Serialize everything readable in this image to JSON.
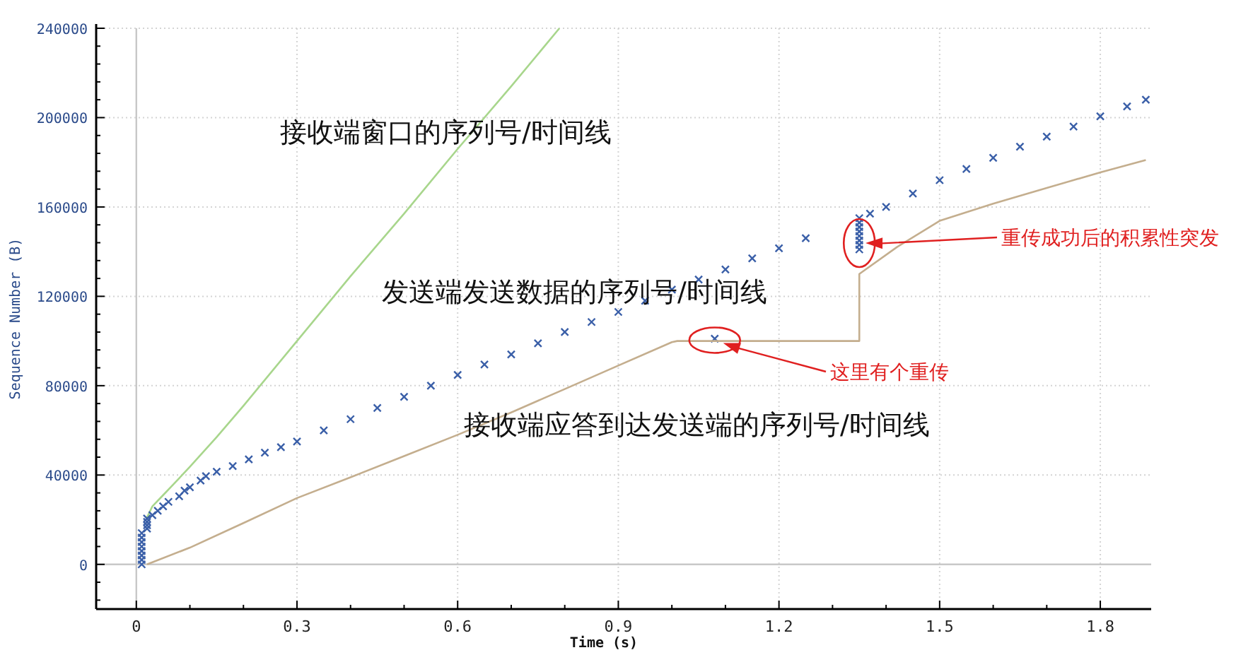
{
  "chart_data": {
    "type": "line",
    "xlabel": "Time (s)",
    "ylabel": "Sequence Number (B)",
    "xlim": [
      -0.075,
      1.895
    ],
    "ylim": [
      -20000,
      240000
    ],
    "xticks": [
      0,
      0.3,
      0.6,
      0.9,
      1.2,
      1.5,
      1.8
    ],
    "yticks": [
      0,
      40000,
      80000,
      120000,
      160000,
      200000,
      240000
    ],
    "grid": true,
    "series": [
      {
        "name": "接收端窗口的序列号/时间线",
        "type": "line",
        "color": "#a8d68c",
        "x": [
          0.02,
          0.03,
          0.05,
          0.07,
          0.1,
          0.15,
          0.2,
          0.3,
          0.4,
          0.5,
          0.6,
          0.7,
          0.79
        ],
        "values": [
          21000,
          26000,
          31000,
          36000,
          43700,
          57000,
          71000,
          100000,
          129000,
          157000,
          186000,
          214000,
          240000
        ]
      },
      {
        "name": "发送端发送数据的序列号/时间线",
        "type": "scatter",
        "marker": "cross",
        "color": "#3a5fa8",
        "x": [
          0.01,
          0.01,
          0.01,
          0.01,
          0.01,
          0.01,
          0.01,
          0.01,
          0.02,
          0.02,
          0.02,
          0.02,
          0.03,
          0.04,
          0.05,
          0.06,
          0.08,
          0.09,
          0.1,
          0.12,
          0.13,
          0.15,
          0.18,
          0.21,
          0.24,
          0.27,
          0.3,
          0.35,
          0.4,
          0.45,
          0.5,
          0.55,
          0.6,
          0.65,
          0.7,
          0.75,
          0.8,
          0.85,
          0.9,
          0.95,
          1.0,
          1.05,
          1.1,
          1.15,
          1.2,
          1.25,
          1.08,
          1.35,
          1.35,
          1.35,
          1.35,
          1.35,
          1.35,
          1.35,
          1.35,
          1.37,
          1.4,
          1.45,
          1.5,
          1.55,
          1.6,
          1.65,
          1.7,
          1.75,
          1.8,
          1.85,
          1.885
        ],
        "values": [
          0,
          2000,
          4000,
          6000,
          8000,
          10000,
          12000,
          14000,
          16000,
          17500,
          19000,
          20500,
          22000,
          24000,
          26000,
          28000,
          30500,
          33000,
          34500,
          37500,
          39500,
          41500,
          44000,
          47000,
          50000,
          52500,
          55000,
          60000,
          65000,
          70000,
          75000,
          80000,
          84800,
          89500,
          94000,
          99000,
          104000,
          108500,
          113000,
          118000,
          123000,
          127500,
          132000,
          137000,
          141500,
          146000,
          101000,
          141000,
          143000,
          145000,
          147000,
          149000,
          151000,
          153000,
          155000,
          157000,
          160000,
          166000,
          172000,
          177000,
          182000,
          187000,
          191500,
          196000,
          200600,
          205000,
          208000
        ]
      },
      {
        "name": "接收端应答到达发送端的序列号/时间线",
        "type": "line",
        "color": "#c4ae8e",
        "x": [
          0.02,
          0.1,
          0.2,
          0.3,
          0.4,
          0.5,
          0.6,
          0.7,
          0.8,
          0.9,
          1.0,
          1.01,
          1.35,
          1.35,
          1.42,
          1.5,
          1.6,
          1.7,
          1.8,
          1.885
        ],
        "values": [
          0,
          7500,
          18500,
          29700,
          39000,
          48500,
          58000,
          68000,
          78500,
          89000,
          99500,
          100000,
          100000,
          130000,
          142000,
          153800,
          161500,
          168500,
          175500,
          181000
        ]
      }
    ],
    "annotations": [
      "这里有个重传",
      "重传成功后的积累性突发"
    ]
  }
}
